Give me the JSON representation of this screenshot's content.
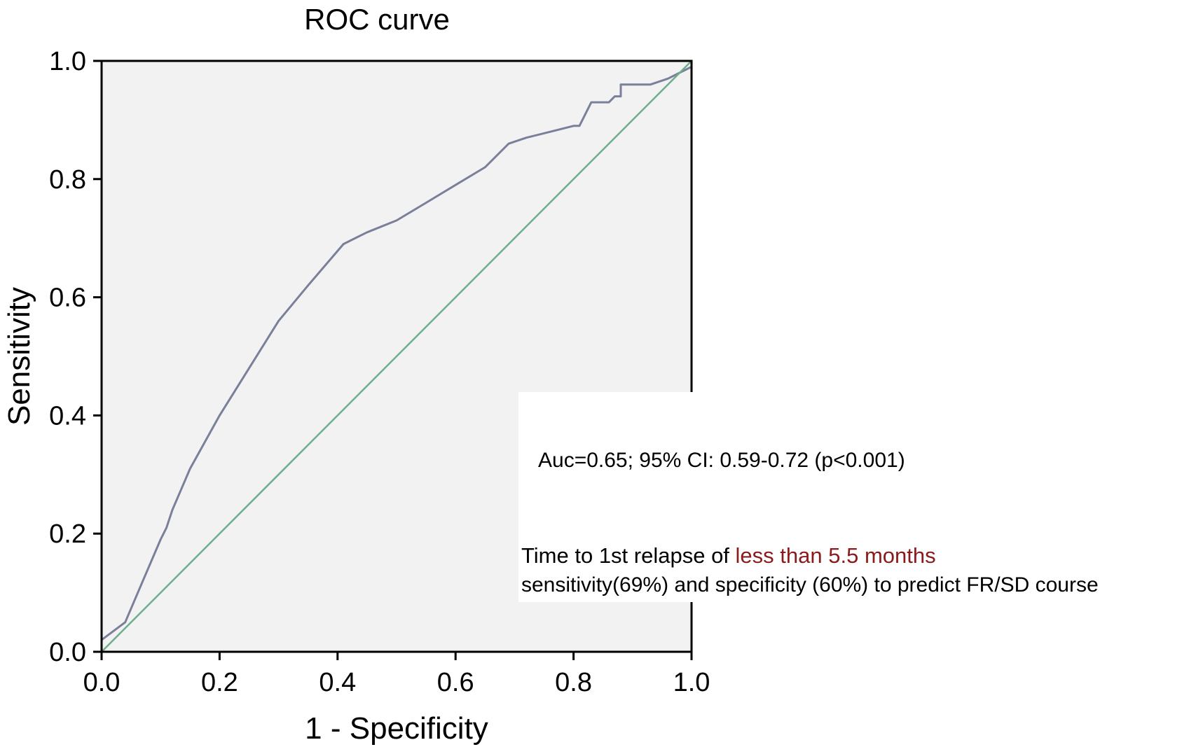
{
  "chart_data": {
    "type": "line",
    "title": "ROC curve",
    "xlabel": "1 - Specificity",
    "ylabel": "Sensitivity",
    "xlim": [
      0,
      1
    ],
    "ylim": [
      0,
      1
    ],
    "xticks": [
      "0.0",
      "0.2",
      "0.4",
      "0.6",
      "0.8",
      "1.0"
    ],
    "yticks": [
      "0.0",
      "0.2",
      "0.4",
      "0.6",
      "0.8",
      "1.0"
    ],
    "grid": false,
    "series": [
      {
        "color": "#7a7f9a",
        "x": [
          0.0,
          0.04,
          0.07,
          0.1,
          0.11,
          0.12,
          0.15,
          0.2,
          0.25,
          0.3,
          0.35,
          0.41,
          0.45,
          0.5,
          0.55,
          0.6,
          0.65,
          0.69,
          0.72,
          0.76,
          0.8,
          0.81,
          0.83,
          0.86,
          0.87,
          0.88,
          0.88,
          0.93,
          0.96,
          1.0
        ],
        "y": [
          0.02,
          0.05,
          0.12,
          0.19,
          0.21,
          0.24,
          0.31,
          0.4,
          0.48,
          0.56,
          0.62,
          0.69,
          0.71,
          0.73,
          0.76,
          0.79,
          0.82,
          0.86,
          0.87,
          0.88,
          0.89,
          0.89,
          0.93,
          0.93,
          0.94,
          0.94,
          0.96,
          0.96,
          0.97,
          0.99
        ]
      },
      {
        "color": "#6fae8c",
        "x": [
          0,
          1
        ],
        "y": [
          0,
          1
        ]
      }
    ]
  },
  "annotations": {
    "auc": "Auc=0.65; 95% CI: 0.59-0.72 (p<0.001)",
    "line1_prefix": "Time to 1st relapse of ",
    "line1_highlight": "less than 5.5 months",
    "line2": "sensitivity(69%) and specificity (60%) to predict FR/SD course"
  }
}
